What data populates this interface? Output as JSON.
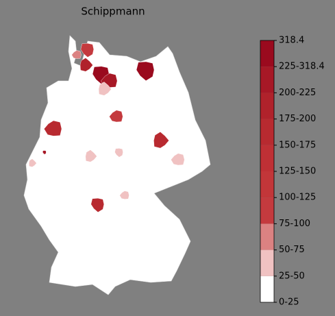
{
  "chart_data": {
    "type": "choropleth",
    "title": "Schippmann",
    "colorbar": {
      "ticks": [
        {
          "value": 0,
          "label": "0-25"
        },
        {
          "value": 25,
          "label": "25-50"
        },
        {
          "value": 50,
          "label": "50-75"
        },
        {
          "value": 75,
          "label": "75-100"
        },
        {
          "value": 100,
          "label": "100-125"
        },
        {
          "value": 125,
          "label": "125-150"
        },
        {
          "value": 150,
          "label": "150-175"
        },
        {
          "value": 175,
          "label": "175-200"
        },
        {
          "value": 200,
          "label": "200-225"
        },
        {
          "value": 225,
          "label": "225-318.4"
        },
        318.4
      ],
      "colors": [
        "#ffffff",
        "#f0c2c2",
        "#db8282",
        "#c43a3e",
        "#c23639",
        "#bf3035",
        "#b82a30",
        "#b0222b",
        "#a71826",
        "#9a0a1e"
      ]
    },
    "region_values": [
      280,
      210,
      180,
      230,
      170,
      170,
      165,
      90,
      45,
      80,
      45,
      40,
      35,
      35,
      30,
      200,
      60
    ]
  }
}
